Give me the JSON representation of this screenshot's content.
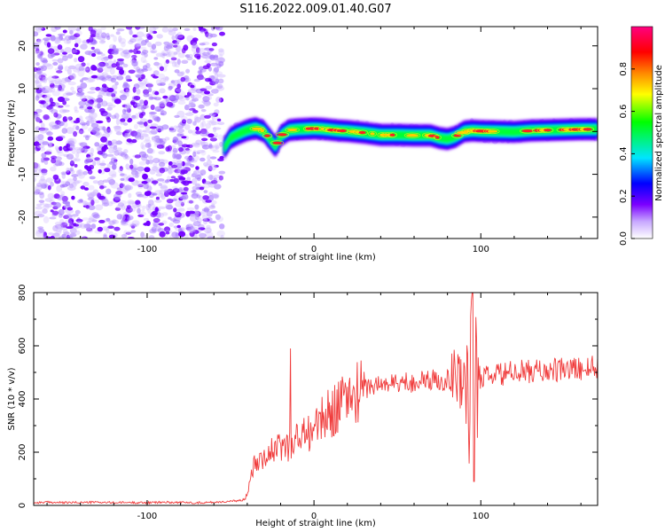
{
  "figure": {
    "title": "S116.2022.009.01.40.G07"
  },
  "chart_data": [
    {
      "type": "heatmap",
      "xlabel": "Height of straight line (km)",
      "ylabel": "Frequency (Hz)",
      "xlim": [
        -168,
        170
      ],
      "ylim": [
        -25,
        24.5
      ],
      "xticks": [
        -100,
        0,
        100
      ],
      "yticks": [
        -20,
        -10,
        0,
        10,
        20
      ],
      "noise_region": {
        "x_from": -168,
        "x_to": -55,
        "color": "#7a00ff"
      },
      "ridge": {
        "x": [
          -54,
          -50,
          -45,
          -40,
          -35,
          -30,
          -26,
          -23,
          -20,
          -15,
          -10,
          -5,
          0,
          5,
          10,
          15,
          20,
          30,
          40,
          50,
          60,
          70,
          75,
          80,
          85,
          90,
          95,
          100,
          110,
          120,
          130,
          140,
          150,
          160,
          170
        ],
        "freq": [
          -4,
          -1.5,
          -0.5,
          0.3,
          0.8,
          0,
          -2,
          -3.5,
          -1,
          0.3,
          0.5,
          0.6,
          0.7,
          0.6,
          0.4,
          0.2,
          0.1,
          -0.3,
          -0.8,
          -0.8,
          -0.9,
          -0.9,
          -1.5,
          -1.8,
          -1.2,
          0.0,
          0.2,
          0.1,
          0.0,
          -0.1,
          0.2,
          0.3,
          0.4,
          0.5,
          0.5
        ]
      },
      "colorbar": {
        "label": "Normalized spectral amplitude",
        "range": [
          0,
          1
        ],
        "ticks": [
          "0.0",
          "0.2",
          "0.4",
          "0.6",
          "0.8"
        ],
        "tick_values": [
          0.0,
          0.2,
          0.4,
          0.6,
          0.8
        ],
        "colors": [
          "#ffffff",
          "#c8a8ff",
          "#7b00ff",
          "#0000ff",
          "#00e5ff",
          "#00ff00",
          "#ffff00",
          "#ff8800",
          "#ff0000",
          "#ff0080"
        ]
      }
    },
    {
      "type": "line",
      "xlabel": "Height of straight line (km)",
      "ylabel": "SNR (10 * v/v)",
      "xlim": [
        -168,
        170
      ],
      "ylim": [
        0,
        800
      ],
      "xticks": [
        -100,
        0,
        100
      ],
      "yticks": [
        0,
        200,
        400,
        600,
        800
      ],
      "series": [
        {
          "color": "#f03c3c",
          "x": [
            -168,
            -160,
            -150,
            -140,
            -130,
            -120,
            -110,
            -100,
            -90,
            -80,
            -70,
            -60,
            -50,
            -45,
            -42,
            -40,
            -38,
            -35,
            -30,
            -25,
            -20,
            -15,
            -10,
            -5,
            0,
            5,
            10,
            15,
            20,
            25,
            30,
            35,
            40,
            50,
            60,
            70,
            80,
            85,
            90,
            93,
            95,
            97,
            100,
            110,
            120,
            130,
            140,
            150,
            160,
            170
          ],
          "y": [
            10,
            12,
            10,
            11,
            12,
            10,
            11,
            10,
            12,
            11,
            10,
            12,
            15,
            18,
            22,
            40,
            130,
            170,
            190,
            200,
            220,
            230,
            250,
            270,
            290,
            320,
            350,
            380,
            400,
            420,
            440,
            450,
            455,
            460,
            465,
            470,
            475,
            480,
            480,
            470,
            470,
            475,
            480,
            490,
            500,
            505,
            505,
            510,
            515,
            520
          ]
        }
      ],
      "annotations": [
        {
          "x": -14,
          "y": 590,
          "desc": "spike"
        },
        {
          "x": 95,
          "y": 800,
          "desc": "spike"
        },
        {
          "x": 95,
          "y": 90,
          "desc": "dip"
        }
      ]
    }
  ]
}
